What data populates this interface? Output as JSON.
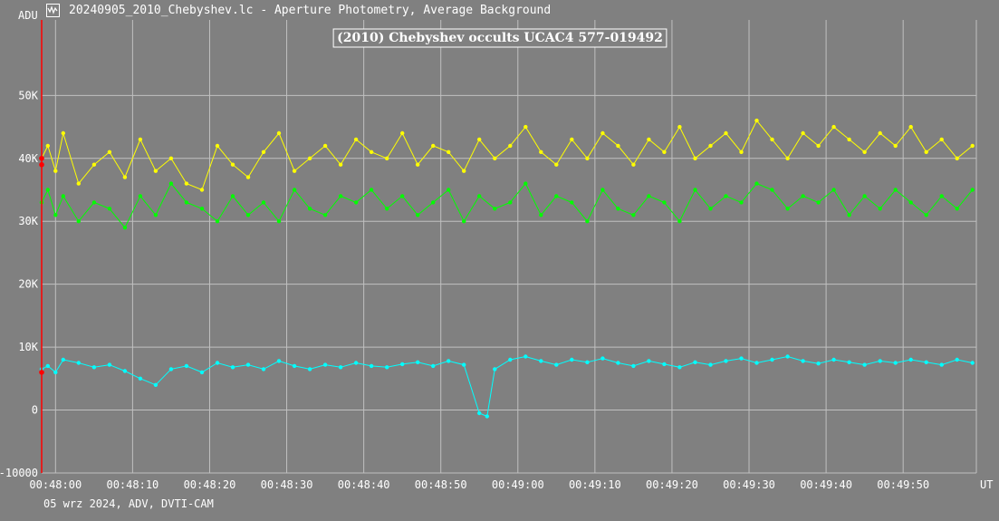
{
  "window": {
    "title": "20240905_2010_Chebyshev.lc - Aperture Photometry, Average Background",
    "icon": "light-curve-app-icon"
  },
  "footer": {
    "text": "05 wrz 2024, ADV, DVTI-CAM"
  },
  "colors": {
    "background": "#808080",
    "grid": "#c0c0c0",
    "target": "#ffff00",
    "comparison": "#00ff00",
    "background_series": "#00ffff",
    "marker": "#ff0000",
    "title_border": "#ffffff"
  },
  "chart_data": {
    "type": "line",
    "title": "(2010) Chebyshev occults UCAC4 577-019492",
    "ylabel": "ADU",
    "xlabel": "UT",
    "ylim": [
      -10000,
      62000
    ],
    "xlim": [
      "00:47:58.2",
      "00:49:59.5"
    ],
    "grid": true,
    "yticks": [
      -10000,
      0,
      10000,
      20000,
      30000,
      40000,
      50000
    ],
    "ytick_labels": [
      "-10000",
      "0",
      "10K",
      "20K",
      "30K",
      "40K",
      "50K"
    ],
    "xticks": [
      "00:48:00",
      "00:48:10",
      "00:48:20",
      "00:48:30",
      "00:48:40",
      "00:48:50",
      "00:49:00",
      "00:49:10",
      "00:49:20",
      "00:49:30",
      "00:49:40",
      "00:49:50"
    ],
    "markers": [
      {
        "t": "00:47:58.2",
        "y": 40000
      },
      {
        "t": "00:47:58.2",
        "y": 39000
      },
      {
        "t": "00:47:58.2",
        "y": 6000
      }
    ],
    "series": [
      {
        "color": "#ffff00",
        "x": [
          "00:47:58.2",
          "00:47:59",
          "00:48:00",
          "00:48:01",
          "00:48:03",
          "00:48:05",
          "00:48:07",
          "00:48:09",
          "00:48:11",
          "00:48:13",
          "00:48:15",
          "00:48:17",
          "00:48:19",
          "00:48:21",
          "00:48:23",
          "00:48:25",
          "00:48:27",
          "00:48:29",
          "00:48:31",
          "00:48:33",
          "00:48:35",
          "00:48:37",
          "00:48:39",
          "00:48:41",
          "00:48:43",
          "00:48:45",
          "00:48:47",
          "00:48:49",
          "00:48:51",
          "00:48:53",
          "00:48:55",
          "00:48:57",
          "00:48:59",
          "00:49:01",
          "00:49:03",
          "00:49:05",
          "00:49:07",
          "00:49:09",
          "00:49:11",
          "00:49:13",
          "00:49:15",
          "00:49:17",
          "00:49:19",
          "00:49:21",
          "00:49:23",
          "00:49:25",
          "00:49:27",
          "00:49:29",
          "00:49:31",
          "00:49:33",
          "00:49:35",
          "00:49:37",
          "00:49:39",
          "00:49:41",
          "00:49:43",
          "00:49:45",
          "00:49:47",
          "00:49:49",
          "00:49:51",
          "00:49:53",
          "00:49:55",
          "00:49:57",
          "00:49:59"
        ],
        "y": [
          40000,
          42000,
          38000,
          44000,
          36000,
          39000,
          41000,
          37000,
          43000,
          38000,
          40000,
          36000,
          35000,
          42000,
          39000,
          37000,
          41000,
          44000,
          38000,
          40000,
          42000,
          39000,
          43000,
          41000,
          40000,
          44000,
          39000,
          42000,
          41000,
          38000,
          43000,
          40000,
          42000,
          45000,
          41000,
          39000,
          43000,
          40000,
          44000,
          42000,
          39000,
          43000,
          41000,
          45000,
          40000,
          42000,
          44000,
          41000,
          46000,
          43000,
          40000,
          44000,
          42000,
          45000,
          43000,
          41000,
          44000,
          42000,
          45000,
          41000,
          43000,
          40000,
          42000
        ]
      },
      {
        "color": "#00ff00",
        "x": [
          "00:47:58.2",
          "00:47:59",
          "00:48:00",
          "00:48:01",
          "00:48:03",
          "00:48:05",
          "00:48:07",
          "00:48:09",
          "00:48:11",
          "00:48:13",
          "00:48:15",
          "00:48:17",
          "00:48:19",
          "00:48:21",
          "00:48:23",
          "00:48:25",
          "00:48:27",
          "00:48:29",
          "00:48:31",
          "00:48:33",
          "00:48:35",
          "00:48:37",
          "00:48:39",
          "00:48:41",
          "00:48:43",
          "00:48:45",
          "00:48:47",
          "00:48:49",
          "00:48:51",
          "00:48:53",
          "00:48:55",
          "00:48:57",
          "00:48:59",
          "00:49:01",
          "00:49:03",
          "00:49:05",
          "00:49:07",
          "00:49:09",
          "00:49:11",
          "00:49:13",
          "00:49:15",
          "00:49:17",
          "00:49:19",
          "00:49:21",
          "00:49:23",
          "00:49:25",
          "00:49:27",
          "00:49:29",
          "00:49:31",
          "00:49:33",
          "00:49:35",
          "00:49:37",
          "00:49:39",
          "00:49:41",
          "00:49:43",
          "00:49:45",
          "00:49:47",
          "00:49:49",
          "00:49:51",
          "00:49:53",
          "00:49:55",
          "00:49:57",
          "00:49:59"
        ],
        "y": [
          33000,
          35000,
          31000,
          34000,
          30000,
          33000,
          32000,
          29000,
          34000,
          31000,
          36000,
          33000,
          32000,
          30000,
          34000,
          31000,
          33000,
          30000,
          35000,
          32000,
          31000,
          34000,
          33000,
          35000,
          32000,
          34000,
          31000,
          33000,
          35000,
          30000,
          34000,
          32000,
          33000,
          36000,
          31000,
          34000,
          33000,
          30000,
          35000,
          32000,
          31000,
          34000,
          33000,
          30000,
          35000,
          32000,
          34000,
          33000,
          36000,
          35000,
          32000,
          34000,
          33000,
          35000,
          31000,
          34000,
          32000,
          35000,
          33000,
          31000,
          34000,
          32000,
          35000
        ]
      },
      {
        "color": "#00ffff",
        "x": [
          "00:47:58.2",
          "00:47:59",
          "00:48:00",
          "00:48:01",
          "00:48:03",
          "00:48:05",
          "00:48:07",
          "00:48:09",
          "00:48:11",
          "00:48:13",
          "00:48:15",
          "00:48:17",
          "00:48:19",
          "00:48:21",
          "00:48:23",
          "00:48:25",
          "00:48:27",
          "00:48:29",
          "00:48:31",
          "00:48:33",
          "00:48:35",
          "00:48:37",
          "00:48:39",
          "00:48:41",
          "00:48:43",
          "00:48:45",
          "00:48:47",
          "00:48:49",
          "00:48:51",
          "00:48:53",
          "00:48:55",
          "00:48:56",
          "00:48:57",
          "00:48:59",
          "00:49:01",
          "00:49:03",
          "00:49:05",
          "00:49:07",
          "00:49:09",
          "00:49:11",
          "00:49:13",
          "00:49:15",
          "00:49:17",
          "00:49:19",
          "00:49:21",
          "00:49:23",
          "00:49:25",
          "00:49:27",
          "00:49:29",
          "00:49:31",
          "00:49:33",
          "00:49:35",
          "00:49:37",
          "00:49:39",
          "00:49:41",
          "00:49:43",
          "00:49:45",
          "00:49:47",
          "00:49:49",
          "00:49:51",
          "00:49:53",
          "00:49:55",
          "00:49:57",
          "00:49:59"
        ],
        "y": [
          6500,
          7000,
          6000,
          8000,
          7500,
          6800,
          7200,
          6200,
          5000,
          4000,
          6500,
          7000,
          6000,
          7500,
          6800,
          7200,
          6500,
          7800,
          7000,
          6500,
          7200,
          6800,
          7500,
          7000,
          6800,
          7300,
          7600,
          7000,
          7800,
          7200,
          -500,
          -1000,
          6500,
          8000,
          8500,
          7800,
          7200,
          8000,
          7600,
          8200,
          7500,
          7000,
          7800,
          7300,
          6800,
          7600,
          7200,
          7800,
          8200,
          7500,
          8000,
          8500,
          7800,
          7400,
          8000,
          7600,
          7200,
          7800,
          7500,
          8000,
          7600,
          7200,
          8000,
          7500
        ]
      }
    ]
  }
}
